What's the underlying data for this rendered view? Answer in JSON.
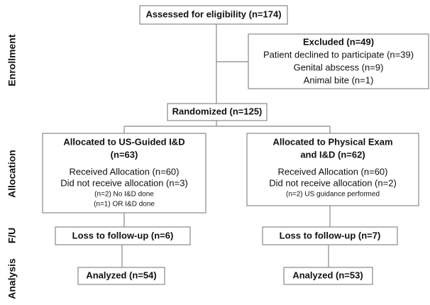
{
  "stages": [
    "Enrollment",
    "Allocation",
    "F/U",
    "Analysis"
  ],
  "assessed": "Assessed for eligibility (n=174)",
  "excluded": {
    "title": "Excluded (n=49)",
    "lines": [
      "Patient declined to participate (n=39)",
      "Genital abscess (n=9)",
      "Animal bite (n=1)"
    ]
  },
  "randomized": "Randomized (n=125)",
  "arms": [
    {
      "title": [
        "Allocated to US-Guided I&D",
        "(n=63)"
      ],
      "received": "Received Allocation (n=60)",
      "not_received": "Did not receive allocation (n=3)",
      "notes": [
        "(n=2) No I&D done",
        "(n=1) OR I&D done"
      ],
      "loss": "Loss to follow-up (n=6)",
      "analyzed": "Analyzed (n=54)"
    },
    {
      "title": [
        "Allocated to Physical Exam",
        "and I&D (n=62)"
      ],
      "received": "Received Allocation (n=60)",
      "not_received": "Did not receive allocation (n=2)",
      "notes": [
        "(n=2) US guidance performed"
      ],
      "loss": "Loss to follow-up (n=7)",
      "analyzed": "Analyzed (n=53)"
    }
  ]
}
